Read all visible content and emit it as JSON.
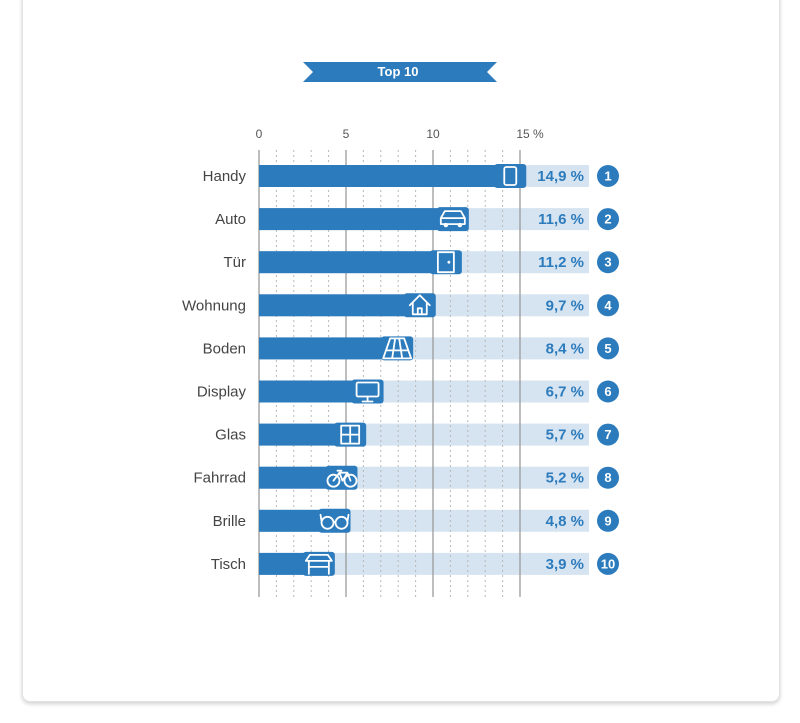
{
  "colors": {
    "bar": "#2c7bbd",
    "track": "#d6e4f1",
    "grid_major": "#9a9a9a",
    "grid_minor": "#b8b8b8",
    "value_text": "#2c7bbd",
    "badge": "#2c7bbd"
  },
  "chart_data": {
    "type": "bar",
    "orientation": "horizontal",
    "title": "Top 10",
    "xlim": [
      0,
      15
    ],
    "tick_labels": [
      "0",
      "5",
      "10",
      "15 %"
    ],
    "categories": [
      "Handy",
      "Auto",
      "Tür",
      "Wohnung",
      "Boden",
      "Display",
      "Glas",
      "Fahrrad",
      "Brille",
      "Tisch"
    ],
    "values": [
      14.9,
      11.6,
      11.2,
      9.7,
      8.4,
      6.7,
      5.7,
      5.2,
      4.8,
      3.9
    ],
    "value_labels": [
      "14,9 %",
      "11,6 %",
      "11,2 %",
      "9,7 %",
      "8,4 %",
      "6,7 %",
      "5,7 %",
      "5,2 %",
      "4,8 %",
      "3,9 %"
    ],
    "ranks": [
      "1",
      "2",
      "3",
      "4",
      "5",
      "6",
      "7",
      "8",
      "9",
      "10"
    ],
    "icons": [
      "smartphone-icon",
      "car-icon",
      "door-icon",
      "house-icon",
      "floor-icon",
      "monitor-icon",
      "window-icon",
      "bicycle-icon",
      "glasses-icon",
      "table-icon"
    ],
    "grid": true
  }
}
